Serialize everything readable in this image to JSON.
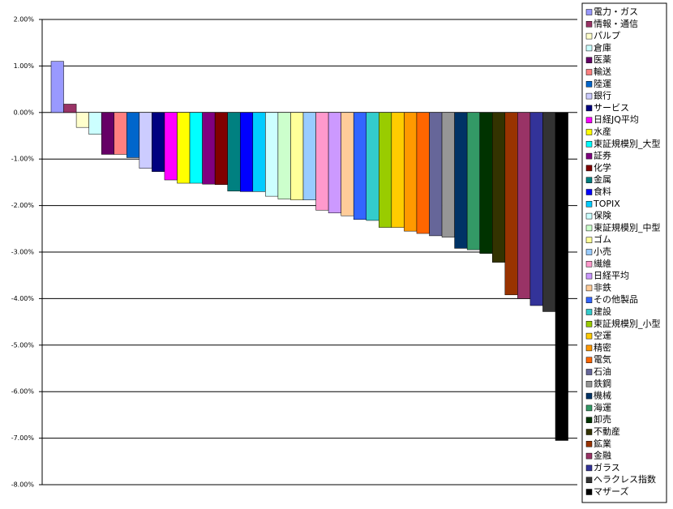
{
  "chart_data": {
    "type": "bar",
    "categories": [
      "電力・ガス",
      "情報・通信",
      "パルプ",
      "倉庫",
      "医薬",
      "輸送",
      "陸運",
      "銀行",
      "サービス",
      "日経JQ平均",
      "水産",
      "東証規模別_大型",
      "証券",
      "化学",
      "金属",
      "食料",
      "TOPIX",
      "保険",
      "東証規模別_中型",
      "ゴム",
      "小売",
      "繊維",
      "日経平均",
      "非鉄",
      "その他製品",
      "建設",
      "東証規模別_小型",
      "空運",
      "精密",
      "電気",
      "石油",
      "鉄鋼",
      "機械",
      "海運",
      "卸売",
      "不動産",
      "鉱業",
      "金融",
      "ガラス",
      "ヘラクレス指数",
      "マザーズ"
    ],
    "values": [
      1.1,
      0.18,
      -0.32,
      -0.47,
      -0.9,
      -0.9,
      -0.97,
      -1.2,
      -1.27,
      -1.45,
      -1.52,
      -1.52,
      -1.54,
      -1.55,
      -1.69,
      -1.7,
      -1.7,
      -1.8,
      -1.86,
      -1.88,
      -1.88,
      -2.1,
      -2.16,
      -2.22,
      -2.3,
      -2.32,
      -2.47,
      -2.47,
      -2.55,
      -2.6,
      -2.65,
      -2.68,
      -2.92,
      -2.95,
      -3.03,
      -3.22,
      -3.92,
      -4.0,
      -4.15,
      -4.28,
      -7.05
    ],
    "colors": [
      "#9999ff",
      "#993366",
      "#ffffcc",
      "#ccffff",
      "#660066",
      "#ff8080",
      "#0066cc",
      "#ccccff",
      "#000080",
      "#ff00ff",
      "#ffff00",
      "#00ffff",
      "#800080",
      "#800000",
      "#008080",
      "#0000ff",
      "#00ccff",
      "#ccffff",
      "#ccffcc",
      "#ffff99",
      "#99ccff",
      "#ff99cc",
      "#cc99ff",
      "#ffcc99",
      "#3366ff",
      "#33cccc",
      "#99cc00",
      "#ffcc00",
      "#ff9900",
      "#ff6600",
      "#666699",
      "#969696",
      "#003366",
      "#339966",
      "#003300",
      "#333300",
      "#993300",
      "#993366",
      "#333399",
      "#333333",
      "#000000"
    ],
    "ylim": [
      -8,
      2
    ],
    "yticks": [
      {
        "value": 2,
        "label": "2.00%"
      },
      {
        "value": 1,
        "label": "1.00%"
      },
      {
        "value": 0,
        "label": "0.00%"
      },
      {
        "value": -1,
        "label": "-1.00%"
      },
      {
        "value": -2,
        "label": "-2.00%"
      },
      {
        "value": -3,
        "label": "-3.00%"
      },
      {
        "value": -4,
        "label": "-4.00%"
      },
      {
        "value": -5,
        "label": "-5.00%"
      },
      {
        "value": -6,
        "label": "-6.00%"
      },
      {
        "value": -7,
        "label": "-7.00%"
      },
      {
        "value": -8,
        "label": "-8.00%"
      }
    ],
    "grid": true,
    "legend": "right"
  }
}
